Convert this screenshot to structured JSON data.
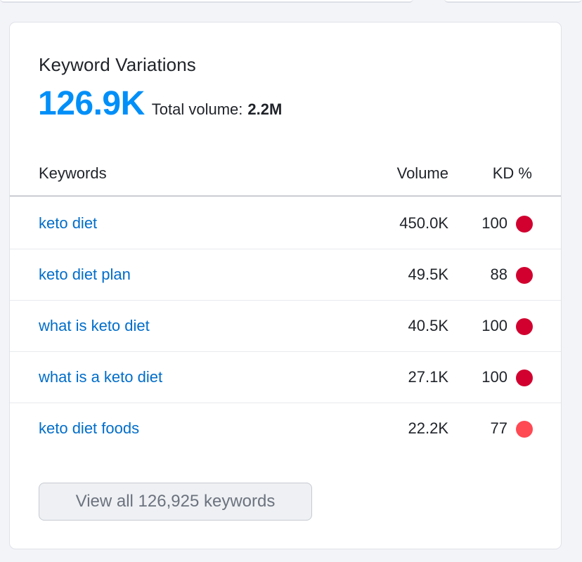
{
  "widget": {
    "title": "Keyword Variations",
    "count": "126.9K",
    "total_volume_label": "Total volume:",
    "total_volume_value": "2.2M"
  },
  "table": {
    "columns": {
      "keywords": "Keywords",
      "volume": "Volume",
      "kd": "KD %"
    },
    "rows": [
      {
        "keyword": "keto diet",
        "volume": "450.0K",
        "kd": "100",
        "kd_color": "#d1002f"
      },
      {
        "keyword": "keto diet plan",
        "volume": "49.5K",
        "kd": "88",
        "kd_color": "#d1002f"
      },
      {
        "keyword": "what is keto diet",
        "volume": "40.5K",
        "kd": "100",
        "kd_color": "#d1002f"
      },
      {
        "keyword": "what is a keto diet",
        "volume": "27.1K",
        "kd": "100",
        "kd_color": "#d1002f"
      },
      {
        "keyword": "keto diet foods",
        "volume": "22.2K",
        "kd": "77",
        "kd_color": "#ff4953"
      }
    ]
  },
  "view_all_label": "View all 126,925 keywords"
}
